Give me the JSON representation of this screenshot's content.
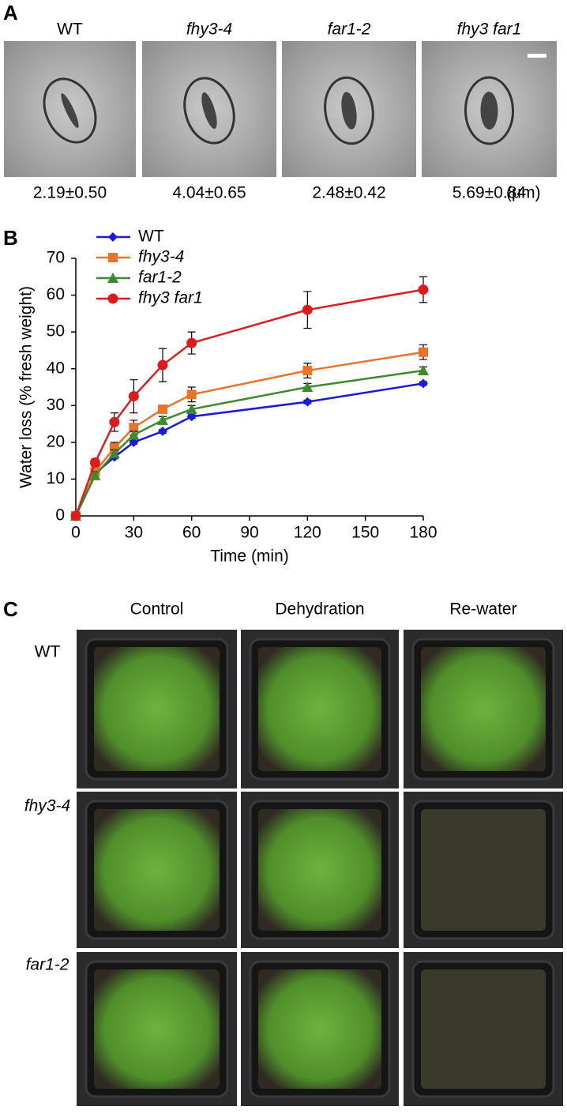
{
  "panel_a": {
    "letter": "A",
    "unit": "(μm)",
    "columns": [
      {
        "label": "WT",
        "value": "2.19±0.50"
      },
      {
        "label": "fhy3-4",
        "value": "4.04±0.65"
      },
      {
        "label": "far1-2",
        "value": "2.48±0.42"
      },
      {
        "label": "fhy3 far1",
        "value": "5.69±0.84"
      }
    ]
  },
  "chart_data": {
    "type": "line",
    "letter": "B",
    "x_label": "Time (min)",
    "y_label": "Water loss (% fresh weight)",
    "x": [
      0,
      10,
      20,
      30,
      45,
      60,
      120,
      180
    ],
    "series": [
      {
        "name": "WT",
        "color": "#1a1adc",
        "marker": "diamond",
        "values": [
          0,
          11.5,
          16,
          20,
          23,
          27,
          31,
          36
        ],
        "errors": [
          0,
          0.5,
          0.5,
          0.5,
          0.5,
          0.5,
          0.5,
          0.5
        ]
      },
      {
        "name": "fhy3-4",
        "color": "#e8732a",
        "marker": "square",
        "values": [
          0,
          12,
          18.5,
          24,
          29,
          33,
          39.5,
          44.5
        ],
        "errors": [
          0,
          1,
          1.5,
          2,
          1,
          2,
          2,
          2
        ]
      },
      {
        "name": "far1-2",
        "color": "#3b8a2b",
        "marker": "triangle",
        "values": [
          0,
          11,
          17,
          22,
          26,
          29,
          35,
          39.5
        ],
        "errors": [
          0,
          1,
          1,
          1,
          1,
          1,
          1,
          1
        ]
      },
      {
        "name": "fhy3 far1",
        "color": "#dc1c1c",
        "marker": "circle",
        "values": [
          0,
          14.5,
          25.5,
          32.5,
          41,
          47,
          56,
          61.5
        ],
        "errors": [
          0,
          1,
          2.5,
          4.5,
          4.5,
          3,
          5,
          3.5
        ]
      }
    ],
    "xlim": [
      0,
      180
    ],
    "xticks": [
      0,
      30,
      60,
      90,
      120,
      150,
      180
    ],
    "ylim": [
      0,
      70
    ],
    "yticks": [
      0,
      10,
      20,
      30,
      40,
      50,
      60,
      70
    ],
    "grid": false,
    "legend": "top-left"
  },
  "panel_c": {
    "letter": "C",
    "columns": [
      "Control",
      "Dehydration",
      "Re-water"
    ],
    "rows": [
      "WT",
      "fhy3-4",
      "far1-2"
    ]
  }
}
